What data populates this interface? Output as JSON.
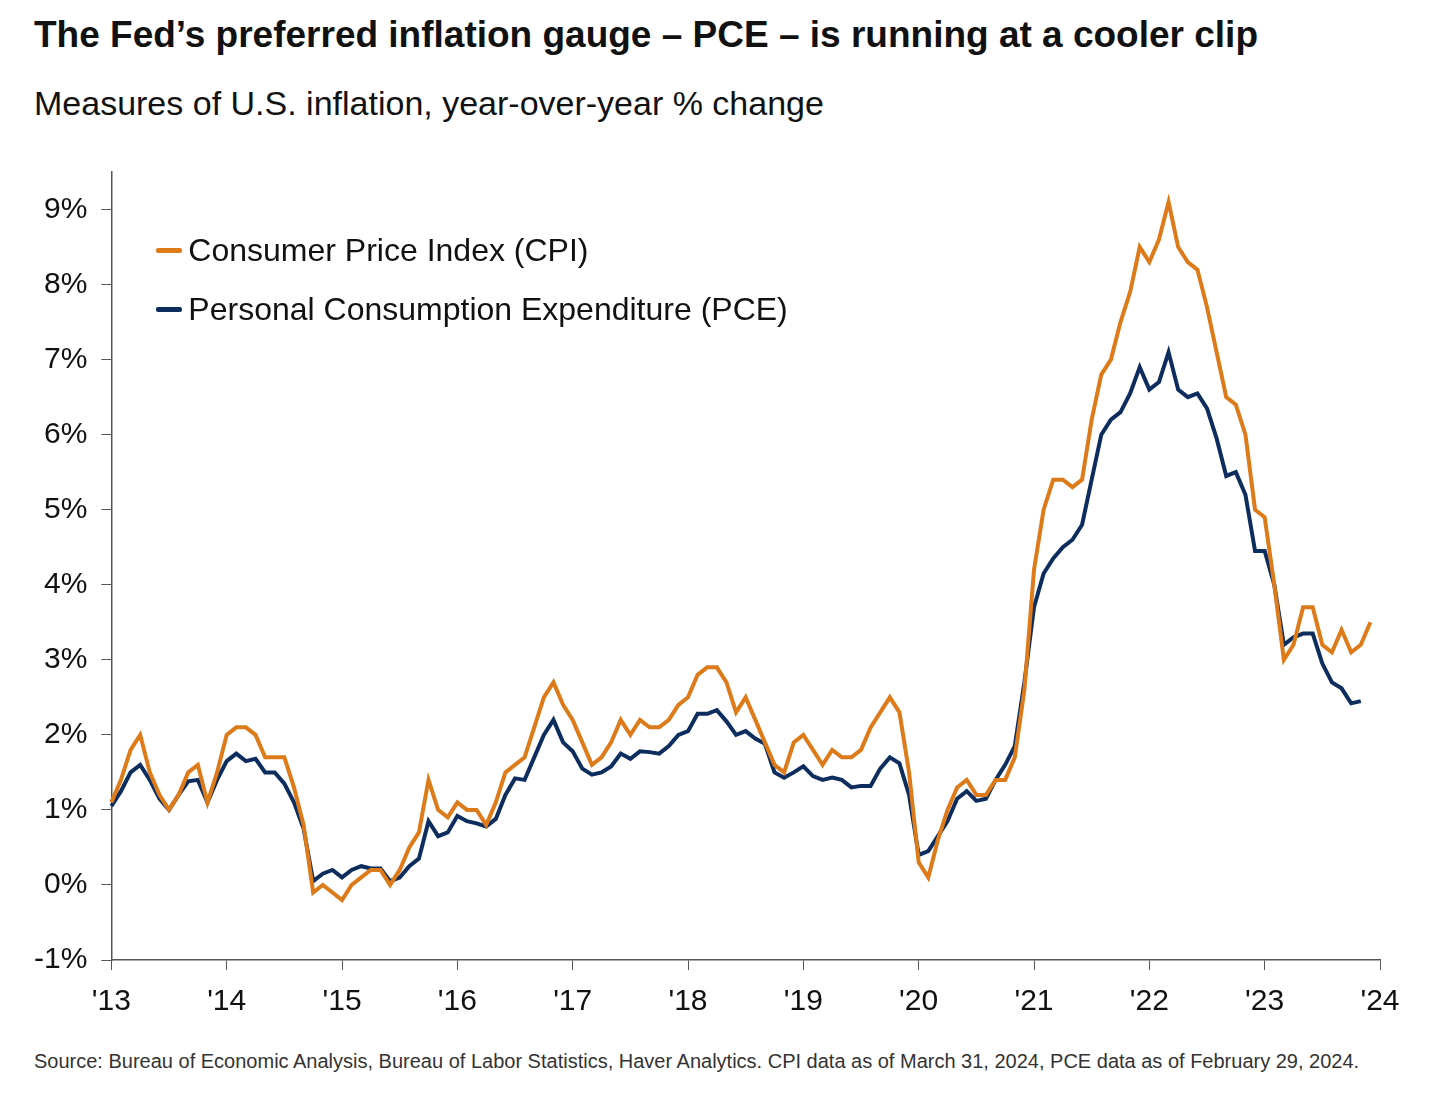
{
  "chart_data": {
    "type": "line",
    "title": "The Fed’s preferred inflation gauge – PCE – is running at a cooler clip",
    "subtitle": "Measures of U.S. inflation, year-over-year % change",
    "source": "Source: Bureau of Economic Analysis, Bureau of Labor Statistics, Haver Analytics. CPI data as of March 31, 2024, PCE data as of February 29, 2024.",
    "legend": "top-left",
    "grid": false,
    "categories": [
      "'13",
      null,
      null,
      null,
      null,
      null,
      null,
      null,
      null,
      null,
      null,
      null,
      "'14",
      null,
      null,
      null,
      null,
      null,
      null,
      null,
      null,
      null,
      null,
      null,
      "'15",
      null,
      null,
      null,
      null,
      null,
      null,
      null,
      null,
      null,
      null,
      null,
      "'16",
      null,
      null,
      null,
      null,
      null,
      null,
      null,
      null,
      null,
      null,
      null,
      "'17",
      null,
      null,
      null,
      null,
      null,
      null,
      null,
      null,
      null,
      null,
      null,
      "'18",
      null,
      null,
      null,
      null,
      null,
      null,
      null,
      null,
      null,
      null,
      null,
      "'19",
      null,
      null,
      null,
      null,
      null,
      null,
      null,
      null,
      null,
      null,
      null,
      "'20",
      null,
      null,
      null,
      null,
      null,
      null,
      null,
      null,
      null,
      null,
      null,
      "'21",
      null,
      null,
      null,
      null,
      null,
      null,
      null,
      null,
      null,
      null,
      null,
      "'22",
      null,
      null,
      null,
      null,
      null,
      null,
      null,
      null,
      null,
      null,
      null,
      "'23",
      null,
      null,
      null,
      null,
      null,
      null,
      null,
      null,
      null,
      null,
      null,
      "'24"
    ],
    "series": [
      {
        "name": "Consumer Price Index (CPI)",
        "color": "#dd7a1a",
        "values": [
          1.1,
          1.4,
          1.8,
          2.0,
          1.5,
          1.2,
          1.0,
          1.2,
          1.5,
          1.6,
          1.1,
          1.5,
          2.0,
          2.1,
          2.1,
          2.0,
          1.7,
          1.7,
          1.7,
          1.3,
          0.8,
          -0.1,
          0.0,
          -0.1,
          -0.2,
          0.0,
          0.1,
          0.2,
          0.2,
          0.0,
          0.2,
          0.5,
          0.7,
          1.4,
          1.0,
          0.9,
          1.1,
          1.0,
          1.0,
          0.8,
          1.1,
          1.5,
          1.6,
          1.7,
          2.1,
          2.5,
          2.7,
          2.4,
          2.2,
          1.9,
          1.6,
          1.7,
          1.9,
          2.2,
          2.0,
          2.2,
          2.1,
          2.1,
          2.2,
          2.4,
          2.5,
          2.8,
          2.9,
          2.9,
          2.7,
          2.3,
          2.5,
          2.2,
          1.9,
          1.6,
          1.5,
          1.9,
          2.0,
          1.8,
          1.6,
          1.8,
          1.7,
          1.7,
          1.8,
          2.1,
          2.3,
          2.5,
          2.3,
          1.5,
          0.3,
          0.1,
          0.6,
          1.0,
          1.3,
          1.4,
          1.2,
          1.2,
          1.4,
          1.4,
          1.7,
          2.6,
          4.2,
          5.0,
          5.4,
          5.4,
          5.3,
          5.4,
          6.2,
          6.8,
          7.0,
          7.5,
          7.9,
          8.5,
          8.3,
          8.6,
          9.1,
          8.5,
          8.3,
          8.2,
          7.7,
          7.1,
          6.5,
          6.4,
          6.0,
          5.0,
          4.9,
          4.0,
          3.0,
          3.2,
          3.7,
          3.7,
          3.2,
          3.1,
          3.4,
          3.1,
          3.2,
          3.5,
          null
        ]
      },
      {
        "name": "Personal Consumption Expenditure (PCE)",
        "color": "#0d2d5e",
        "values": [
          1.05,
          1.25,
          1.5,
          1.6,
          1.4,
          1.15,
          1.0,
          1.2,
          1.38,
          1.4,
          1.1,
          1.4,
          1.65,
          1.75,
          1.65,
          1.68,
          1.5,
          1.5,
          1.35,
          1.1,
          0.75,
          0.05,
          0.15,
          0.2,
          0.1,
          0.2,
          0.25,
          0.22,
          0.22,
          0.05,
          0.1,
          0.25,
          0.35,
          0.85,
          0.65,
          0.7,
          0.92,
          0.85,
          0.82,
          0.78,
          0.88,
          1.2,
          1.42,
          1.4,
          1.7,
          2.0,
          2.2,
          1.9,
          1.78,
          1.55,
          1.47,
          1.5,
          1.58,
          1.75,
          1.68,
          1.78,
          1.77,
          1.75,
          1.85,
          2.0,
          2.05,
          2.28,
          2.28,
          2.33,
          2.18,
          2.0,
          2.05,
          1.95,
          1.88,
          1.5,
          1.43,
          1.5,
          1.58,
          1.45,
          1.4,
          1.43,
          1.4,
          1.3,
          1.32,
          1.32,
          1.55,
          1.7,
          1.62,
          1.2,
          0.4,
          0.45,
          0.65,
          0.85,
          1.15,
          1.25,
          1.12,
          1.15,
          1.4,
          1.6,
          1.85,
          2.7,
          3.7,
          4.15,
          4.35,
          4.5,
          4.6,
          4.8,
          5.4,
          6.0,
          6.2,
          6.3,
          6.55,
          6.9,
          6.6,
          6.7,
          7.1,
          6.6,
          6.5,
          6.55,
          6.35,
          5.95,
          5.45,
          5.5,
          5.2,
          4.45,
          4.45,
          4.0,
          3.2,
          3.3,
          3.35,
          3.35,
          2.95,
          2.7,
          2.62,
          2.42,
          2.45,
          null,
          null
        ]
      }
    ],
    "ylim": [
      -1,
      9.5
    ],
    "yticks": [
      {
        "value": -1,
        "label": "-1%"
      },
      {
        "value": 0,
        "label": "0%"
      },
      {
        "value": 1,
        "label": "1%"
      },
      {
        "value": 2,
        "label": "2%"
      },
      {
        "value": 3,
        "label": "3%"
      },
      {
        "value": 4,
        "label": "4%"
      },
      {
        "value": 5,
        "label": "5%"
      },
      {
        "value": 6,
        "label": "6%"
      },
      {
        "value": 7,
        "label": "7%"
      },
      {
        "value": 8,
        "label": "8%"
      },
      {
        "value": 9,
        "label": "9%"
      }
    ]
  }
}
